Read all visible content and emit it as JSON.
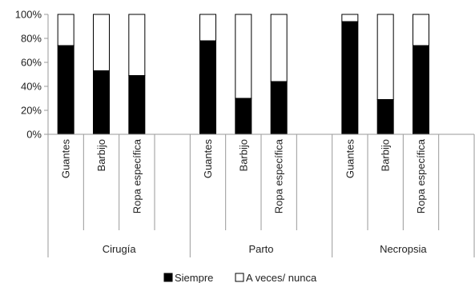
{
  "chart_data": {
    "type": "bar",
    "stacked": true,
    "percent": true,
    "title": "",
    "xlabel": "",
    "ylabel": "",
    "ylim": [
      0,
      100
    ],
    "yticks": [
      "0%",
      "20%",
      "40%",
      "60%",
      "80%",
      "100%"
    ],
    "grid": false,
    "legend_position": "bottom",
    "groups": [
      {
        "name": "Cirugía",
        "categories": [
          "Guantes",
          "Barbijo",
          "Ropa específica"
        ]
      },
      {
        "name": "Parto",
        "categories": [
          "Guantes",
          "Barbijo",
          "Ropa específica"
        ]
      },
      {
        "name": "Necropsia",
        "categories": [
          "Guantes",
          "Barbijo",
          "Ropa específica"
        ]
      }
    ],
    "series": [
      {
        "name": "Siempre",
        "color": "#000000",
        "values": [
          74,
          53,
          49,
          78,
          30,
          44,
          94,
          29,
          74
        ]
      },
      {
        "name": "A veces/ nunca",
        "color": "#ffffff",
        "values": [
          26,
          47,
          51,
          22,
          70,
          56,
          6,
          71,
          26
        ]
      }
    ]
  }
}
